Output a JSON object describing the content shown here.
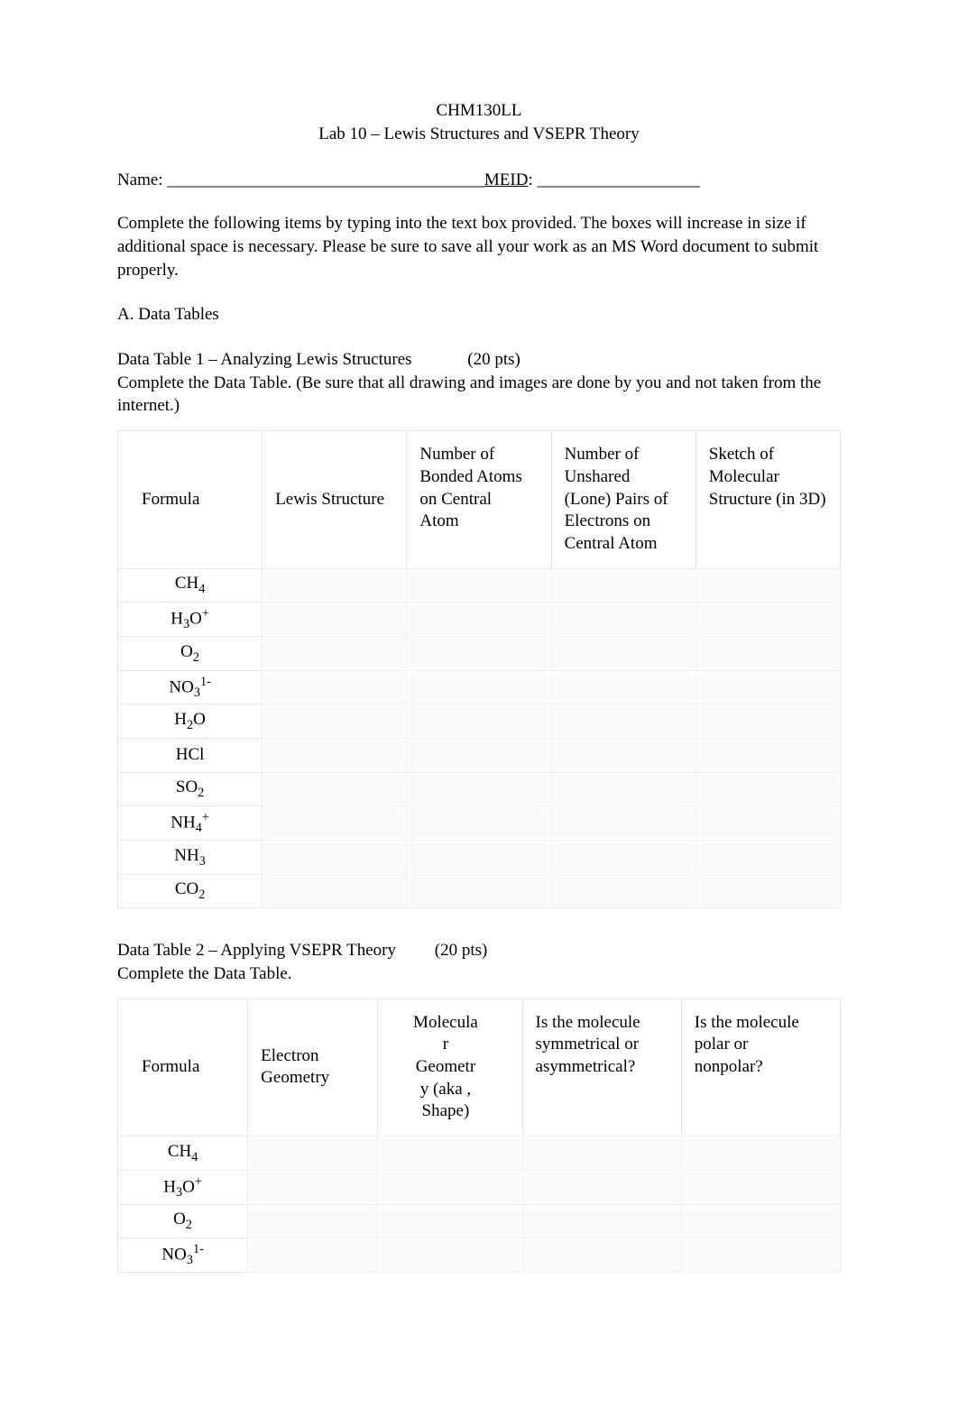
{
  "header": {
    "course": "CHM130LL",
    "lab_title": "Lab 10 – Lewis Structures and VSEPR Theory"
  },
  "name_line": {
    "name_label": "Name:  _____________________________________",
    "meid_label": "MEID",
    "meid_blank": ": ___________________"
  },
  "intro": "Complete the following items by typing into the text box provided. The boxes will increase in size if additional space is necessary. Please be sure to save all your work as an MS Word document to submit properly.",
  "section_a_title": "A. Data Tables",
  "table1": {
    "caption_line1": "Data Table 1 – Analyzing Lewis Structures",
    "caption_points": "(20 pts)",
    "caption_line2": "Complete the Data Table. (Be sure that all drawing and images are done by you and not taken from the internet.)",
    "col_widths_pct": [
      20,
      20,
      20,
      20,
      20
    ],
    "columns": [
      "Formula",
      "Lewis Structure",
      "Number of Bonded Atoms on Central Atom",
      "Number of Unshared (Lone) Pairs of Electrons on Central Atom",
      "Sketch of Molecular Structure (in 3D)"
    ],
    "rows": [
      {
        "formula_html": "CH<sub>4</sub>"
      },
      {
        "formula_html": "H<sub>3</sub>O<sup>+</sup>"
      },
      {
        "formula_html": "O<sub>2</sub>"
      },
      {
        "formula_html": "NO<sub>3</sub><sup>1-</sup>"
      },
      {
        "formula_html": "H<sub>2</sub>O"
      },
      {
        "formula_html": "HCl"
      },
      {
        "formula_html": "SO<sub>2</sub>"
      },
      {
        "formula_html": "NH<sub>4</sub><sup>+</sup>"
      },
      {
        "formula_html": "NH<sub>3</sub>"
      },
      {
        "formula_html": "CO<sub>2</sub>"
      }
    ]
  },
  "table2": {
    "caption_line1": "Data Table 2 – Applying VSEPR Theory",
    "caption_points": "(20 pts)",
    "caption_line2": "Complete the Data Table.",
    "col_widths_pct": [
      18,
      18,
      20,
      22,
      22
    ],
    "columns": [
      "Formula",
      "Electron Geometry",
      "Molecular Geometry (aka, Shape)",
      "Is the molecule symmetrical or asymmetrical?",
      "Is the molecule polar or nonpolar?"
    ],
    "rows": [
      {
        "formula_html": "CH<sub>4</sub>"
      },
      {
        "formula_html": "H<sub>3</sub>O<sup>+</sup>"
      },
      {
        "formula_html": "O<sub>2</sub>"
      },
      {
        "formula_html": "NO<sub>3</sub><sup>1-</sup>"
      }
    ]
  },
  "colors": {
    "text": "#000000",
    "background": "#ffffff",
    "table_border": "#e6e6e6",
    "blur_bg": "#fafafa"
  }
}
